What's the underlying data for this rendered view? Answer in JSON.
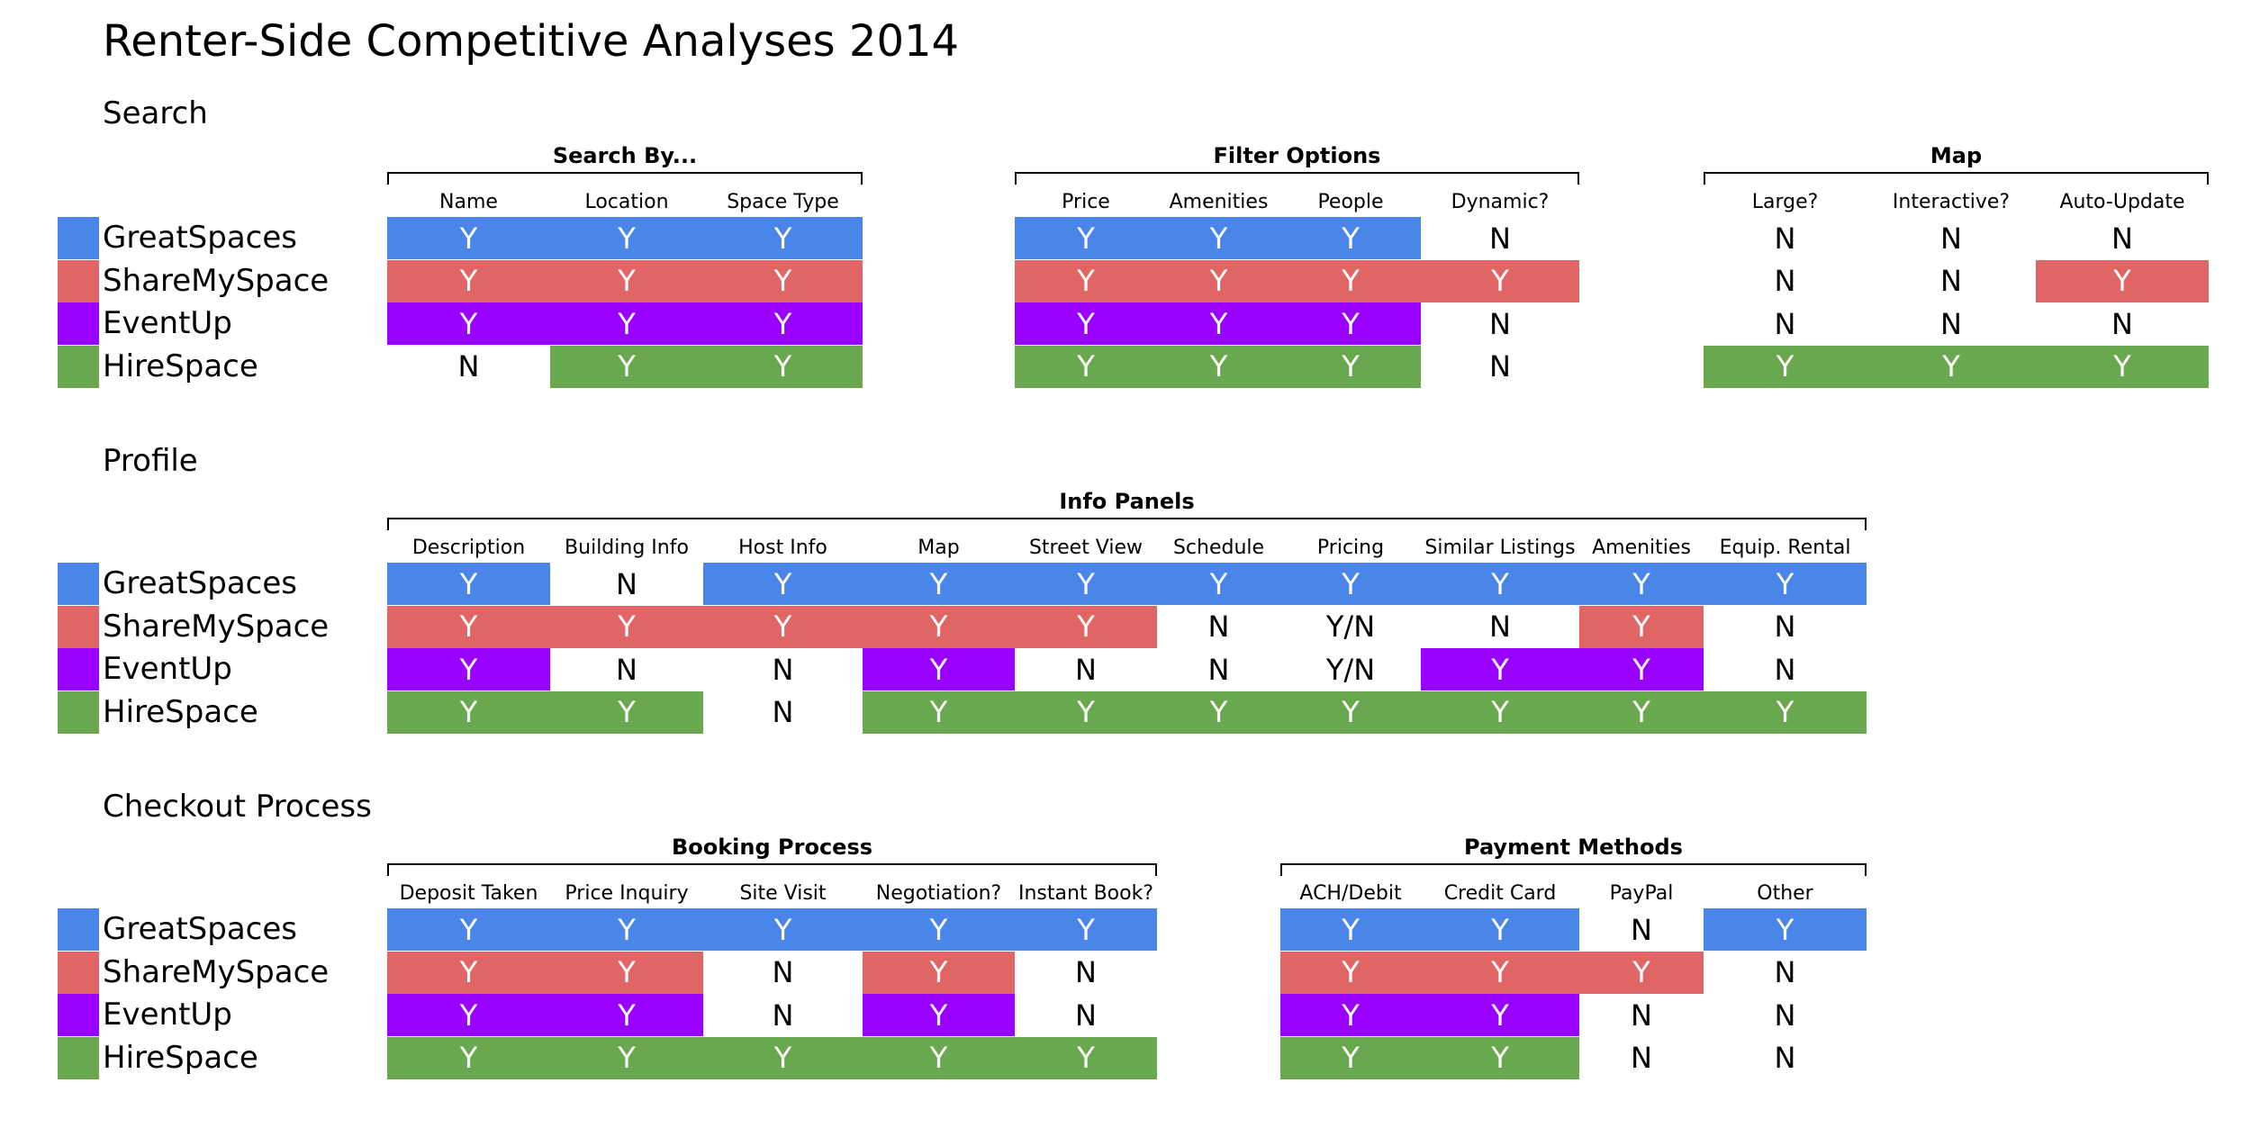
{
  "title": "Renter-Side Competitive Analyses 2014",
  "companies": [
    "GreatSpaces",
    "ShareMySpace",
    "EventUp",
    "HireSpace"
  ],
  "company_colors": [
    "#4a86e8",
    "#e06666",
    "#9900ff",
    "#6aa84f"
  ],
  "sections": [
    {
      "title": "Search",
      "groups": [
        {
          "label": "Search By...",
          "columns": [
            "Name",
            "Location",
            "Space Type"
          ],
          "rows": [
            [
              "Y",
              "Y",
              "Y"
            ],
            [
              "Y",
              "Y",
              "Y"
            ],
            [
              "Y",
              "Y",
              "Y"
            ],
            [
              "N",
              "Y",
              "Y"
            ]
          ]
        },
        {
          "label": "Filter Options",
          "columns": [
            "Price",
            "Amenities",
            "People",
            "Dynamic?"
          ],
          "rows": [
            [
              "Y",
              "Y",
              "Y",
              "N"
            ],
            [
              "Y",
              "Y",
              "Y",
              "Y"
            ],
            [
              "Y",
              "Y",
              "Y",
              "N"
            ],
            [
              "Y",
              "Y",
              "Y",
              "N"
            ]
          ]
        },
        {
          "label": "Map",
          "columns": [
            "Large?",
            "Interactive?",
            "Auto-Update"
          ],
          "rows": [
            [
              "N",
              "N",
              "N"
            ],
            [
              "N",
              "N",
              "Y"
            ],
            [
              "N",
              "N",
              "N"
            ],
            [
              "Y",
              "Y",
              "Y"
            ]
          ]
        }
      ]
    },
    {
      "title": "Profile",
      "groups": [
        {
          "label": "Info Panels",
          "columns": [
            "Description",
            "Building Info",
            "Host Info",
            "Map",
            "Street View",
            "Schedule",
            "Pricing",
            "Similar Listings",
            "Amenities",
            "Equip. Rental"
          ],
          "rows": [
            [
              "Y",
              "N",
              "Y",
              "Y",
              "Y",
              "Y",
              "Y",
              "Y",
              "Y",
              "Y"
            ],
            [
              "Y",
              "Y",
              "Y",
              "Y",
              "Y",
              "N",
              "Y/N",
              "N",
              "Y",
              "N"
            ],
            [
              "Y",
              "N",
              "N",
              "Y",
              "N",
              "N",
              "Y/N",
              "Y",
              "Y",
              "N"
            ],
            [
              "Y",
              "Y",
              "N",
              "Y",
              "Y",
              "Y",
              "Y",
              "Y",
              "Y",
              "Y"
            ]
          ]
        }
      ]
    },
    {
      "title": "Checkout Process",
      "groups": [
        {
          "label": "Booking Process",
          "columns": [
            "Deposit Taken",
            "Price Inquiry",
            "Site Visit",
            "Negotiation?",
            "Instant Book?"
          ],
          "rows": [
            [
              "Y",
              "Y",
              "Y",
              "Y",
              "Y"
            ],
            [
              "Y",
              "Y",
              "N",
              "Y",
              "N"
            ],
            [
              "Y",
              "Y",
              "N",
              "Y",
              "N"
            ],
            [
              "Y",
              "Y",
              "Y",
              "Y",
              "Y"
            ]
          ]
        },
        {
          "label": "Payment Methods",
          "columns": [
            "ACH/Debit",
            "Credit Card",
            "PayPal",
            "Other"
          ],
          "rows": [
            [
              "Y",
              "Y",
              "N",
              "Y"
            ],
            [
              "Y",
              "Y",
              "Y",
              "N"
            ],
            [
              "Y",
              "Y",
              "N",
              "N"
            ],
            [
              "Y",
              "Y",
              "N",
              "N"
            ]
          ]
        }
      ]
    }
  ]
}
